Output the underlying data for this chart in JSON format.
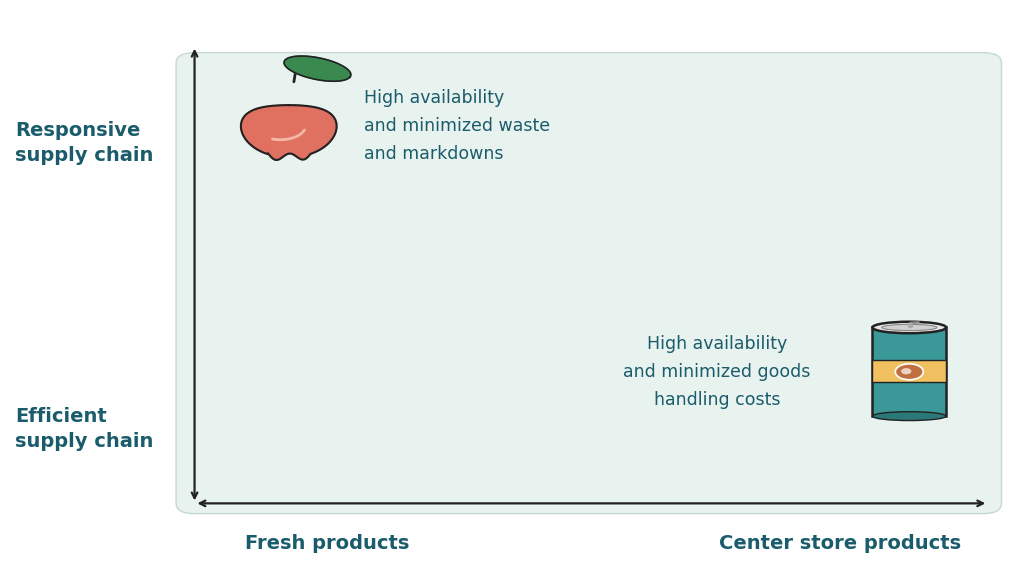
{
  "background_color": "#ffffff",
  "box_color": "#e8f2ee",
  "box_edge_color": "#c5d9d2",
  "axis_color": "#222222",
  "text_color": "#1a5c6b",
  "label_color": "#1a5c6b",
  "y_label_top": "Responsive\nsupply chain",
  "y_label_bottom": "Efficient\nsupply chain",
  "x_label_left": "Fresh products",
  "x_label_right": "Center store products",
  "fresh_text": "High availability\nand minimized waste\nand markdowns",
  "center_text": "High availability\nand minimized goods\nhandling costs",
  "label_fontsize": 14,
  "text_fontsize": 12.5,
  "apple_color": "#e07060",
  "apple_outline": "#222222",
  "apple_leaf": "#3a8a50",
  "apple_stem": "#222222",
  "apple_shine_color": "#f0a090",
  "can_body_color": "#3a9898",
  "can_outline": "#222222",
  "can_label_color": "#f0c060",
  "can_label_outline": "#222222",
  "can_bean_color": "#c07040",
  "can_top_color": "#e8e8e8",
  "can_top_outline": "#222222"
}
